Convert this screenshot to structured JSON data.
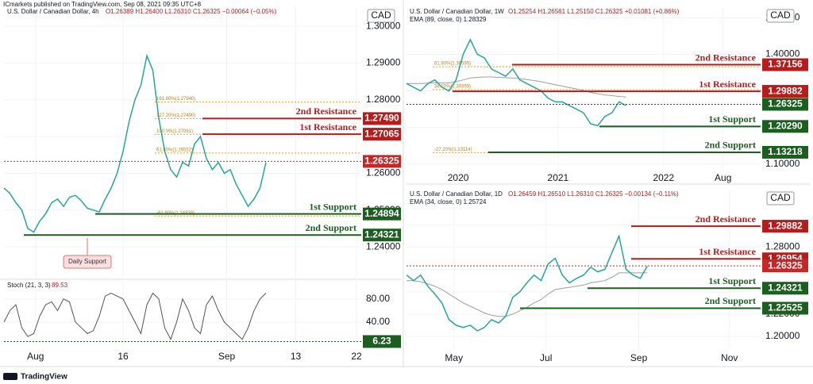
{
  "header": "ICmarkets published on TradingView.com, Sep 08, 2021 09:35 UTC+8",
  "footer": "TradingView",
  "chart_data": [
    {
      "type": "line",
      "title": "U.S. Dollar / Canadian Dollar, 4h",
      "readout": "O1.26389  H1.26400  L1.26310  C1.26325  −0.00064 (−0.05%)",
      "currency": "CAD",
      "color": "#26a69a",
      "values": [
        1.256,
        1.2545,
        1.252,
        1.25,
        1.245,
        1.244,
        1.247,
        1.249,
        1.252,
        1.253,
        1.251,
        1.2535,
        1.254,
        1.2525,
        1.2505,
        1.25,
        1.2495,
        1.253,
        1.256,
        1.26,
        1.266,
        1.274,
        1.28,
        1.284,
        1.292,
        1.288,
        1.275,
        1.266,
        1.261,
        1.259,
        1.263,
        1.262,
        1.268,
        1.27,
        1.264,
        1.261,
        1.263,
        1.26,
        1.261,
        1.257,
        1.254,
        1.251,
        1.253,
        1.256,
        1.263
      ],
      "xlim": [
        0,
        60
      ],
      "xticks": [
        {
          "value": 5.3,
          "label": "Aug"
        },
        {
          "value": 20,
          "label": "16"
        },
        {
          "value": 37.4,
          "label": "Sep"
        },
        {
          "value": 49,
          "label": "13"
        },
        {
          "value": 59.2,
          "label": "22"
        }
      ],
      "ylim": [
        1.2316,
        1.305
      ],
      "yticks": [
        {
          "value": 1.24,
          "label": "1.24000"
        },
        {
          "value": 1.25,
          "label": "1.25000"
        },
        {
          "value": 1.26,
          "label": "1.26000"
        },
        {
          "value": 1.27,
          "label": "1.27000"
        },
        {
          "value": 1.28,
          "label": "1.28000"
        },
        {
          "value": 1.29,
          "label": "1.29000"
        },
        {
          "value": 1.3,
          "label": "1.30000"
        }
      ],
      "fibs": [
        {
          "value": 1.2794,
          "label": "161.80%(1.27940)"
        },
        {
          "value": 1.2749,
          "label": "127.20%(1.27490)"
        },
        {
          "value": 1.27061,
          "label": "100.0%(1.27061)"
        },
        {
          "value": 1.26552,
          "label": "61.80%(1.26552)"
        },
        {
          "value": 1.24838,
          "label": "-61.80%(1.24838)"
        }
      ],
      "levels": [
        {
          "name": "2nd Resistance",
          "value": 1.2749,
          "label": "1.27490",
          "color": "#b71c1c"
        },
        {
          "name": "1st Resistance",
          "value": 1.27065,
          "label": "1.27065",
          "color": "#b71c1c"
        },
        {
          "value": 1.26325,
          "label": "1.26325",
          "color": "#c62828",
          "style": "dotted"
        },
        {
          "name": "1st Support",
          "value": 1.24894,
          "label": "1.24894",
          "color": "#1b5e20"
        },
        {
          "name": "2nd Support",
          "value": 1.24321,
          "label": "1.24321",
          "color": "#1b5e20"
        }
      ],
      "annotation": "Daily Support"
    },
    {
      "type": "line",
      "title": "Stoch (21, 3, 3)",
      "readout": "89.53",
      "color": "#555555",
      "values": [
        40,
        60,
        70,
        30,
        15,
        20,
        50,
        70,
        75,
        60,
        80,
        75,
        40,
        30,
        20,
        25,
        50,
        85,
        90,
        85,
        80,
        60,
        40,
        20,
        70,
        90,
        80,
        30,
        10,
        40,
        80,
        60,
        30,
        20,
        70,
        85,
        60,
        40,
        30,
        20,
        10,
        30,
        60,
        80,
        90
      ],
      "xlim": [
        0,
        60
      ],
      "ylim": [
        0,
        110
      ],
      "yticks": [
        {
          "value": 40,
          "label": "40.00"
        },
        {
          "value": 80,
          "label": "80.00"
        }
      ],
      "levels": [
        {
          "value": 6.23,
          "label": "6.23",
          "color": "#1b5e20",
          "style": "dotted"
        }
      ]
    },
    {
      "type": "line",
      "title": "U.S. Dollar / Canadian Dollar, 1W",
      "readout": "O1.25254  H1.26561  L1.25150  C1.26325  +0.01081 (+0.86%)",
      "indicator": "EMA (89, close, 0)  1.28329",
      "currency": "CAD",
      "color": "#26a69a",
      "values": [
        1.32,
        1.31,
        1.3,
        1.32,
        1.33,
        1.31,
        1.3,
        1.33,
        1.4,
        1.44,
        1.4,
        1.39,
        1.36,
        1.35,
        1.34,
        1.36,
        1.33,
        1.32,
        1.31,
        1.3,
        1.28,
        1.27,
        1.27,
        1.26,
        1.25,
        1.24,
        1.21,
        1.205,
        1.23,
        1.24,
        1.27,
        1.26
      ],
      "ema": [
        1.32,
        1.32,
        1.32,
        1.321,
        1.322,
        1.322,
        1.322,
        1.325,
        1.33,
        1.335,
        1.337,
        1.338,
        1.338,
        1.337,
        1.336,
        1.335,
        1.333,
        1.331,
        1.328,
        1.325,
        1.321,
        1.317,
        1.313,
        1.309,
        1.305,
        1.301,
        1.296,
        1.292,
        1.289,
        1.287,
        1.285,
        1.283
      ],
      "xlim": [
        0,
        50
      ],
      "xticks": [
        {
          "value": 7.3,
          "label": "2020"
        },
        {
          "value": 21.4,
          "label": "2021"
        },
        {
          "value": 36.3,
          "label": "2022"
        },
        {
          "value": 44.7,
          "label": "Aug"
        }
      ],
      "ylim": [
        1.0822,
        1.5267
      ],
      "yticks": [
        {
          "value": 1.1,
          "label": "1.10000"
        },
        {
          "value": 1.2,
          "label": "1.20000"
        },
        {
          "value": 1.3,
          "label": "1.30000"
        },
        {
          "value": 1.4,
          "label": "1.40000"
        },
        {
          "value": 1.5,
          "label": "1.50000"
        }
      ],
      "fibs": [
        {
          "value": 1.36595,
          "label": "61.80%(1.36595)"
        },
        {
          "value": 1.30369,
          "label": "38.20%(1.30369)"
        },
        {
          "value": 1.13114,
          "label": "-27.20%(1.13114)"
        }
      ],
      "levels": [
        {
          "name": "2nd Resistance",
          "value": 1.37156,
          "label": "1.37156",
          "color": "#b71c1c"
        },
        {
          "name": "1st Resistance",
          "value": 1.29882,
          "label": "1.29882",
          "color": "#b71c1c"
        },
        {
          "value": 1.26325,
          "label": "1.26325",
          "color": "#1b5e20",
          "style": "dotted"
        },
        {
          "name": "1st Support",
          "value": 1.2029,
          "label": "1.20290",
          "color": "#1b5e20"
        },
        {
          "name": "2nd Support",
          "value": 1.13218,
          "label": "1.13218",
          "color": "#1b5e20"
        }
      ]
    },
    {
      "type": "line",
      "title": "U.S. Dollar / Canadian Dollar, 1D",
      "readout": "O1.26459  H1.26510  L1.26310  C1.26325  −0.00134 (−0.11%)",
      "indicator": "EMA (34, close, 0)  1.25724",
      "currency": "CAD",
      "color": "#26a69a",
      "values": [
        1.255,
        1.25,
        1.255,
        1.245,
        1.238,
        1.23,
        1.215,
        1.21,
        1.208,
        1.21,
        1.205,
        1.208,
        1.215,
        1.212,
        1.218,
        1.235,
        1.24,
        1.248,
        1.255,
        1.25,
        1.265,
        1.27,
        1.255,
        1.248,
        1.252,
        1.255,
        1.262,
        1.258,
        1.26,
        1.275,
        1.29,
        1.26,
        1.255,
        1.252,
        1.263
      ],
      "ema": [
        1.25,
        1.25,
        1.249,
        1.247,
        1.245,
        1.242,
        1.238,
        1.234,
        1.23,
        1.227,
        1.224,
        1.221,
        1.219,
        1.218,
        1.218,
        1.22,
        1.223,
        1.226,
        1.23,
        1.233,
        1.238,
        1.242,
        1.243,
        1.244,
        1.245,
        1.246,
        1.248,
        1.249,
        1.25,
        1.253,
        1.257,
        1.257,
        1.257,
        1.257,
        1.257
      ],
      "xlim": [
        0,
        50
      ],
      "xticks": [
        {
          "value": 6.7,
          "label": "May"
        },
        {
          "value": 19.7,
          "label": "Jul"
        },
        {
          "value": 32.8,
          "label": "Sep"
        },
        {
          "value": 45.6,
          "label": "Nov"
        }
      ],
      "ylim": [
        1.1886,
        1.3309
      ],
      "yticks": [
        {
          "value": 1.2,
          "label": "1.20000"
        },
        {
          "value": 1.22,
          "label": "1.22000"
        },
        {
          "value": 1.24,
          "label": "1.24000"
        },
        {
          "value": 1.26,
          "label": "1.26000"
        },
        {
          "value": 1.28,
          "label": "1.28000"
        },
        {
          "value": 1.3,
          "label": "1.30000"
        }
      ],
      "levels": [
        {
          "name": "2nd Resistance",
          "value": 1.29882,
          "label": "1.29882",
          "color": "#b71c1c"
        },
        {
          "name": "1st Resistance",
          "value": 1.26954,
          "label": "1.26954",
          "color": "#b71c1c"
        },
        {
          "value": 1.26325,
          "label": "1.26325",
          "color": "#c62828",
          "style": "dotted"
        },
        {
          "name": "1st Support",
          "value": 1.24321,
          "label": "1.24321",
          "color": "#1b5e20"
        },
        {
          "name": "2nd Support",
          "value": 1.22525,
          "label": "1.22525",
          "color": "#1b5e20"
        }
      ]
    }
  ]
}
